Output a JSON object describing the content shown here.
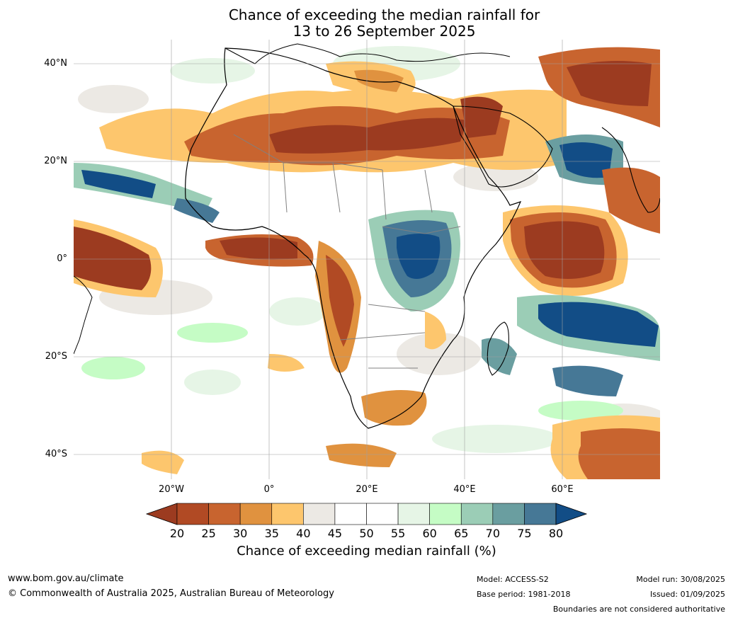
{
  "title": {
    "line1": "Chance of exceeding the median rainfall for",
    "line2": "13 to 26 September 2025"
  },
  "map": {
    "region": "Africa and surrounding oceans",
    "lat_ticks": [
      "40°N",
      "20°N",
      "0°",
      "20°S",
      "40°S"
    ],
    "lon_ticks": [
      "20°W",
      "0°",
      "20°E",
      "40°E",
      "60°E"
    ]
  },
  "colorbar": {
    "ticks": [
      "20",
      "25",
      "30",
      "35",
      "40",
      "45",
      "50",
      "55",
      "60",
      "65",
      "70",
      "75",
      "80"
    ],
    "colors": [
      "#9c3b20",
      "#b14a24",
      "#c8642f",
      "#e0923f",
      "#fdc66d",
      "#ece9e4",
      "#ffffff",
      "#ffffff",
      "#e6f5e6",
      "#c5fcc5",
      "#9bcdb6",
      "#6a9ea0",
      "#467896",
      "#124d86"
    ],
    "label": "Chance of exceeding median rainfall (%)"
  },
  "footer": {
    "url": "www.bom.gov.au/climate",
    "copyright": "© Commonwealth of Australia 2025, Australian Bureau of Meteorology",
    "model": "Model: ACCESS-S2",
    "base_period": "Base period: 1981-2018",
    "model_run": "Model run: 30/08/2025",
    "issued": "Issued: 01/09/2025",
    "disclaimer": "Boundaries are not considered authoritative"
  }
}
